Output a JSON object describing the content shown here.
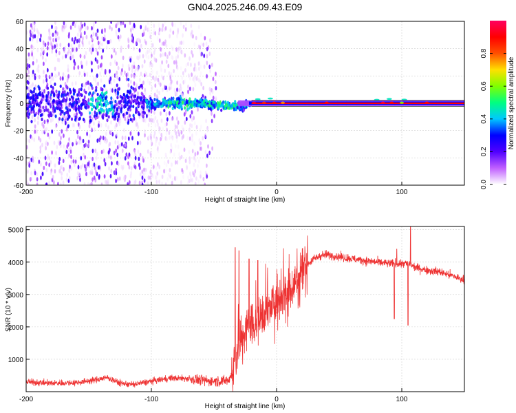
{
  "figure": {
    "title": "GN04.2025.246.09.43.E09"
  },
  "chart_data": [
    {
      "type": "heatmap",
      "title": "GN04.2025.246.09.43.E09",
      "xlabel": "Height of straight line (km)",
      "ylabel": "Frequency (Hz)",
      "xlim": [
        -200,
        150
      ],
      "ylim": [
        -60,
        60
      ],
      "x_ticks": [
        -200,
        -100,
        0,
        100
      ],
      "y_ticks": [
        -60,
        -40,
        -20,
        0,
        20,
        40,
        60
      ],
      "grid": true,
      "description_bands": [
        {
          "x_range": [
            -200,
            -105
          ],
          "freq_spread": 60,
          "amplitude": 0.15
        },
        {
          "x_range": [
            -105,
            -50
          ],
          "freq_spread": 10,
          "amplitude": 0.3
        },
        {
          "x_range": [
            -50,
            -20
          ],
          "freq_spread": 8,
          "amplitude": 0.4
        },
        {
          "x_range": [
            -20,
            150
          ],
          "freq_spread": 1,
          "amplitude": 0.95
        }
      ],
      "colorbar": {
        "label": "Normalized spectral amplitude",
        "ticks": [
          0.0,
          0.2,
          0.4,
          0.6,
          0.8
        ],
        "range": [
          0,
          1
        ],
        "colors": [
          "#ffffff",
          "#c060ff",
          "#5000ff",
          "#0000ff",
          "#00c8ff",
          "#00ff80",
          "#80ff00",
          "#ffe000",
          "#ff5000",
          "#ff0000",
          "#ff0060"
        ]
      }
    },
    {
      "type": "line",
      "xlabel": "Height of straight line (km)",
      "ylabel": "SNR (10 * v/v)",
      "xlim": [
        -200,
        150
      ],
      "ylim": [
        0,
        5100
      ],
      "x_ticks": [
        -200,
        -100,
        0,
        100
      ],
      "y_ticks": [
        1000,
        2000,
        3000,
        4000,
        5000
      ],
      "grid": true,
      "color": "#ee3333",
      "series": [
        {
          "name": "SNR",
          "x": [
            -200,
            -180,
            -160,
            -145,
            -135,
            -125,
            -115,
            -100,
            -85,
            -70,
            -55,
            -45,
            -38,
            -34,
            -30,
            -25,
            -20,
            -15,
            -10,
            -5,
            0,
            5,
            10,
            15,
            20,
            25,
            30,
            35,
            40,
            50,
            60,
            70,
            80,
            90,
            95,
            100,
            105,
            110,
            120,
            130,
            140,
            150
          ],
          "mean": [
            300,
            260,
            280,
            360,
            440,
            260,
            220,
            320,
            420,
            400,
            330,
            330,
            340,
            850,
            1500,
            1800,
            2100,
            2250,
            2400,
            2600,
            2900,
            3000,
            3200,
            3400,
            3700,
            3950,
            4100,
            4200,
            4230,
            4170,
            4100,
            4050,
            4000,
            3950,
            3950,
            3950,
            3950,
            3850,
            3750,
            3700,
            3580,
            3450
          ],
          "spikes": [
            {
              "x": -33,
              "y": 4450
            },
            {
              "x": -30,
              "y": 4350
            },
            {
              "x": -22,
              "y": 4100
            },
            {
              "x": -15,
              "y": 4050
            },
            {
              "x": 94,
              "y": 2250
            },
            {
              "x": 96,
              "y": 4400
            },
            {
              "x": 105,
              "y": 2050
            },
            {
              "x": 107,
              "y": 5100
            }
          ]
        }
      ]
    }
  ]
}
